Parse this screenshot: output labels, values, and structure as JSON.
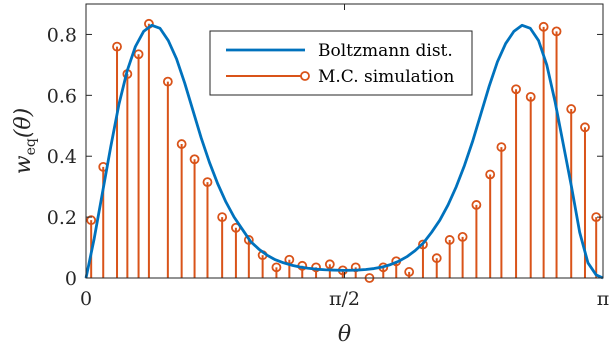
{
  "chart_data": {
    "type": "line",
    "title": "",
    "xlabel": "θ",
    "ylabel_main": "w",
    "ylabel_sub": "eq",
    "ylabel_arg": "(θ)",
    "xlim": [
      0,
      3.14159
    ],
    "ylim": [
      0,
      0.9
    ],
    "x_ticks": [
      {
        "value": 0,
        "label": "0"
      },
      {
        "value": 1.5708,
        "label": "π/2"
      },
      {
        "value": 3.14159,
        "label": "π"
      }
    ],
    "y_ticks": [
      {
        "value": 0,
        "label": "0"
      },
      {
        "value": 0.2,
        "label": "0.2"
      },
      {
        "value": 0.4,
        "label": "0.4"
      },
      {
        "value": 0.6,
        "label": "0.6"
      },
      {
        "value": 0.8,
        "label": "0.8"
      }
    ],
    "legend_position": "top-right",
    "series": [
      {
        "name": "Boltzmann dist.",
        "kind": "line",
        "color": "#0072BD",
        "x": [
          0.0,
          0.05,
          0.1,
          0.15,
          0.2,
          0.25,
          0.3,
          0.35,
          0.4,
          0.45,
          0.5,
          0.55,
          0.6,
          0.65,
          0.7,
          0.75,
          0.8,
          0.85,
          0.9,
          0.95,
          1.0,
          1.05,
          1.1,
          1.15,
          1.2,
          1.25,
          1.3,
          1.35,
          1.4,
          1.45,
          1.5,
          1.5708,
          1.65,
          1.7,
          1.75,
          1.8,
          1.85,
          1.9,
          1.95,
          2.0,
          2.05,
          2.1,
          2.15,
          2.2,
          2.25,
          2.3,
          2.35,
          2.4,
          2.45,
          2.5,
          2.55,
          2.6,
          2.65,
          2.7,
          2.75,
          2.8,
          2.85,
          2.9,
          2.95,
          3.0,
          3.05,
          3.1,
          3.14159
        ],
        "y": [
          0.0,
          0.13,
          0.28,
          0.43,
          0.57,
          0.68,
          0.76,
          0.81,
          0.83,
          0.82,
          0.78,
          0.72,
          0.64,
          0.55,
          0.46,
          0.38,
          0.31,
          0.25,
          0.2,
          0.16,
          0.12,
          0.095,
          0.075,
          0.06,
          0.05,
          0.042,
          0.036,
          0.032,
          0.029,
          0.027,
          0.026,
          0.025,
          0.026,
          0.028,
          0.031,
          0.036,
          0.044,
          0.055,
          0.07,
          0.09,
          0.115,
          0.15,
          0.19,
          0.24,
          0.3,
          0.37,
          0.45,
          0.54,
          0.63,
          0.71,
          0.77,
          0.81,
          0.83,
          0.82,
          0.78,
          0.7,
          0.58,
          0.44,
          0.3,
          0.15,
          0.05,
          0.01,
          0.0
        ]
      },
      {
        "name": "M.C. simulation",
        "kind": "stem",
        "color": "#D95319",
        "x": [
          0.0314,
          0.1047,
          0.1885,
          0.2513,
          0.3194,
          0.3823,
          0.4974,
          0.5812,
          0.6597,
          0.7382,
          0.8273,
          0.911,
          0.9895,
          1.0733,
          1.1571,
          1.2356,
          1.3141,
          1.398,
          1.4817,
          1.5603,
          1.6389,
          1.7226,
          1.8064,
          1.8852,
          1.9637,
          2.0475,
          2.1313,
          2.21,
          2.2885,
          2.3723,
          2.456,
          2.5242,
          2.6133,
          2.7023,
          2.7808,
          2.8593,
          2.9484,
          3.0321,
          3.1002
        ],
        "y": [
          0.19,
          0.365,
          0.76,
          0.67,
          0.735,
          0.835,
          0.645,
          0.44,
          0.39,
          0.315,
          0.2,
          0.165,
          0.125,
          0.075,
          0.035,
          0.06,
          0.04,
          0.035,
          0.045,
          0.025,
          0.035,
          0.0,
          0.035,
          0.055,
          0.02,
          0.11,
          0.065,
          0.125,
          0.135,
          0.24,
          0.34,
          0.43,
          0.62,
          0.595,
          0.825,
          0.81,
          0.555,
          0.495,
          0.2
        ]
      }
    ]
  }
}
